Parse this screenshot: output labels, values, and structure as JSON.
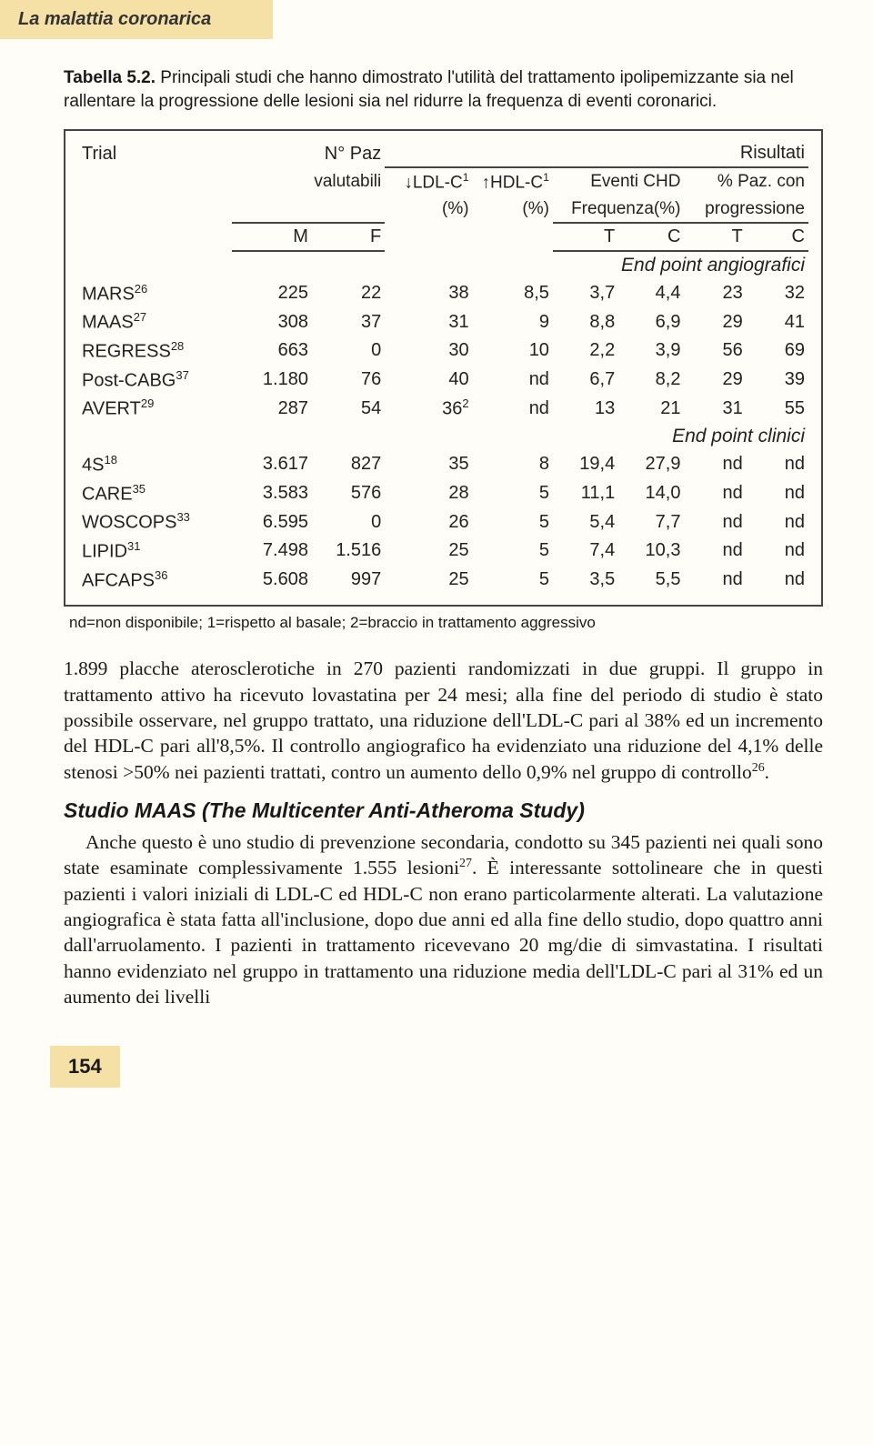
{
  "header": {
    "title": "La malattia coronarica"
  },
  "caption": {
    "lead": "Tabella 5.2.",
    "rest": " Principali studi che hanno dimostrato l'utilità del trattamento ipolipemizzante sia nel rallentare la progressione delle lesioni sia nel ridurre la frequenza di eventi coronarici."
  },
  "table": {
    "h_trial": "Trial",
    "h_npaz": "N° Paz",
    "h_valut": "valutabili",
    "h_risult": "Risultati",
    "h_ldlc": "↓LDL-C",
    "h_hdlc": "↑HDL-C",
    "h_pct": "(%)",
    "h_eventi": "Eventi CHD",
    "h_freq": "Frequenza(%)",
    "h_paz": "% Paz. con",
    "h_prog": "progressione",
    "h_m": "M",
    "h_f": "F",
    "h_t": "T",
    "h_c": "C",
    "sect1": "End point angiografici",
    "sect2": "End point clinici",
    "rows1": [
      {
        "name": "MARS",
        "sup": "26",
        "m": "225",
        "f": "22",
        "ldl": "38",
        "hdl": "8,5",
        "et": "3,7",
        "ec": "4,4",
        "pt": "23",
        "pc": "32"
      },
      {
        "name": "MAAS",
        "sup": "27",
        "m": "308",
        "f": "37",
        "ldl": "31",
        "hdl": "9",
        "et": "8,8",
        "ec": "6,9",
        "pt": "29",
        "pc": "41"
      },
      {
        "name": "REGRESS",
        "sup": "28",
        "m": "663",
        "f": "0",
        "ldl": "30",
        "hdl": "10",
        "et": "2,2",
        "ec": "3,9",
        "pt": "56",
        "pc": "69"
      },
      {
        "name": "Post-CABG",
        "sup": "37",
        "m": "1.180",
        "f": "76",
        "ldl": "40",
        "hdl": "nd",
        "et": "6,7",
        "ec": "8,2",
        "pt": "29",
        "pc": "39"
      },
      {
        "name": "AVERT",
        "sup": "29",
        "m": "287",
        "f": "54",
        "ldl": "36",
        "ldlsup": "2",
        "hdl": "nd",
        "et": "13",
        "ec": "21",
        "pt": "31",
        "pc": "55"
      }
    ],
    "rows2": [
      {
        "name": "4S",
        "sup": "18",
        "m": "3.617",
        "f": "827",
        "ldl": "35",
        "hdl": "8",
        "et": "19,4",
        "ec": "27,9",
        "pt": "nd",
        "pc": "nd"
      },
      {
        "name": "CARE",
        "sup": "35",
        "m": "3.583",
        "f": "576",
        "ldl": "28",
        "hdl": "5",
        "et": "11,1",
        "ec": "14,0",
        "pt": "nd",
        "pc": "nd"
      },
      {
        "name": "WOSCOPS",
        "sup": "33",
        "m": "6.595",
        "f": "0",
        "ldl": "26",
        "hdl": "5",
        "et": "5,4",
        "ec": "7,7",
        "pt": "nd",
        "pc": "nd"
      },
      {
        "name": "LIPID",
        "sup": "31",
        "m": "7.498",
        "f": "1.516",
        "ldl": "25",
        "hdl": "5",
        "et": "7,4",
        "ec": "10,3",
        "pt": "nd",
        "pc": "nd"
      },
      {
        "name": "AFCAPS",
        "sup": "36",
        "m": "5.608",
        "f": "997",
        "ldl": "25",
        "hdl": "5",
        "et": "3,5",
        "ec": "5,5",
        "pt": "nd",
        "pc": "nd"
      }
    ]
  },
  "footnote": "nd=non disponibile; 1=rispetto al basale; 2=braccio in trattamento aggressivo",
  "para1": "1.899 placche aterosclerotiche in 270 pazienti randomizzati in due gruppi. Il gruppo in trattamento attivo ha ricevuto lovastatina per 24 mesi; alla fine del periodo di studio è stato possibile osservare, nel gruppo trattato, una riduzione dell'LDL-C pari al 38% ed un incremento del HDL-C pari all'8,5%. Il controllo angiografico ha evidenziato una riduzione del 4,1% delle stenosi >50% nei pazienti trattati, contro un aumento dello 0,9% nel gruppo di controllo",
  "para1_sup": "26",
  "para1_end": ".",
  "subhead": "Studio MAAS (The Multicenter Anti-Atheroma Study)",
  "para2a": "Anche questo è uno studio di prevenzione secondaria, condotto su 345 pazienti nei quali sono state esaminate complessivamente 1.555 lesioni",
  "para2_sup": "27",
  "para2b": ". È interessante sottolineare che in questi pazienti i valori iniziali di LDL-C ed HDL-C non erano particolarmente alterati. La valutazione angiografica è stata fatta all'inclusione, dopo due anni ed alla fine dello studio, dopo quattro anni dall'arruolamento. I pazienti in trattamento ricevevano 20 mg/die di simvastatina. I risultati hanno evidenziato nel gruppo in trattamento una riduzione media dell'LDL-C pari al 31% ed un aumento dei livelli",
  "pagenum": "154"
}
